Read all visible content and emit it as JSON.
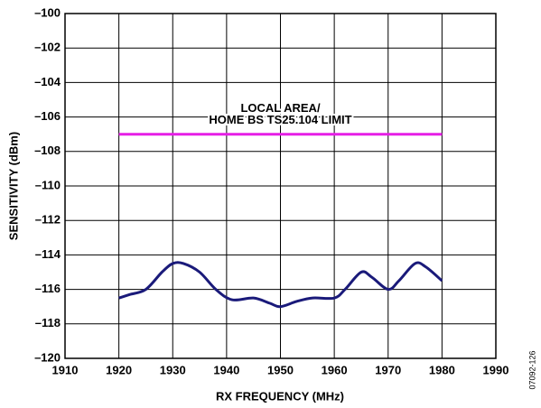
{
  "chart_data": {
    "type": "line",
    "xlabel": "RX FREQUENCY (MHz)",
    "ylabel": "SENSITIVITY (dBm)",
    "figure_id": "07092-126",
    "x": [
      1920,
      1922,
      1925,
      1928,
      1930,
      1932,
      1935,
      1938,
      1941,
      1945,
      1948,
      1950,
      1953,
      1956,
      1960,
      1962,
      1965,
      1967,
      1970,
      1972,
      1975,
      1977,
      1980
    ],
    "series": [
      {
        "color": "#1a1a7a",
        "values": [
          -116.5,
          -116.3,
          -116,
          -115,
          -114.5,
          -114.5,
          -115,
          -116,
          -116.6,
          -116.5,
          -116.8,
          -117,
          -116.7,
          -116.5,
          -116.5,
          -116,
          -115,
          -115.3,
          -116,
          -115.5,
          -114.5,
          -114.7,
          -115.5
        ]
      }
    ],
    "reference_line": {
      "y": -107,
      "xrange": [
        1920,
        1980
      ],
      "color": "#e61ee6",
      "label": [
        "LOCAL AREA/",
        "HOME BS TS25.104 LIMIT"
      ]
    },
    "xlim": [
      1910,
      1990
    ],
    "xticks": [
      1910,
      1920,
      1930,
      1940,
      1950,
      1960,
      1970,
      1980,
      1990
    ],
    "ylim": [
      -120,
      -100
    ],
    "yticks": [
      {
        "value": -120,
        "label": "–120"
      },
      {
        "value": -118,
        "label": "–118"
      },
      {
        "value": -116,
        "label": "–116"
      },
      {
        "value": -114,
        "label": "–114"
      },
      {
        "value": -112,
        "label": "–112"
      },
      {
        "value": -110,
        "label": "–110"
      },
      {
        "value": -108,
        "label": "–108"
      },
      {
        "value": -106,
        "label": "–106"
      },
      {
        "value": -104,
        "label": "–104"
      },
      {
        "value": -102,
        "label": "–102"
      },
      {
        "value": -100,
        "label": "–100"
      }
    ],
    "grid": true
  }
}
